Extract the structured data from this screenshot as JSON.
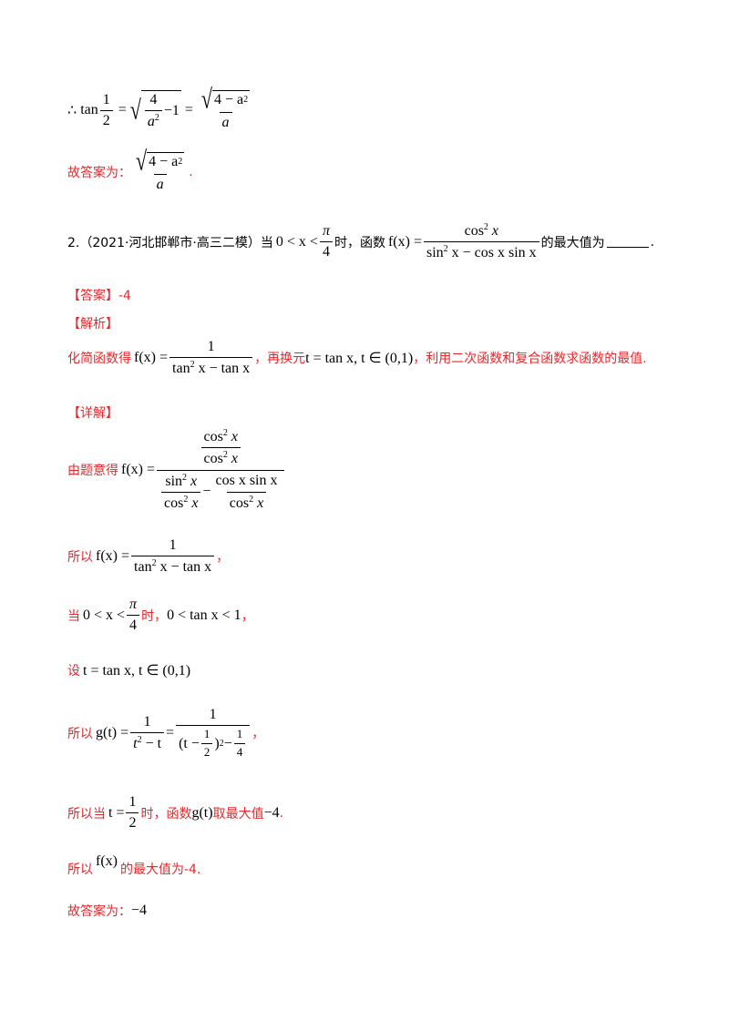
{
  "line1": {
    "therefore": "∴",
    "tan": "tan",
    "half_num": "1",
    "half_den": "2",
    "frac_num": "4",
    "frac_den": "a",
    "minus_one": "−1",
    "eq": "=",
    "rhs_num": "4 − a",
    "rhs_den": "a"
  },
  "answer_line": {
    "label": "故答案为：",
    "num": "4 − a",
    "den": "a",
    "period": "."
  },
  "problem": {
    "number": "2.（2021·河北邯郸市·高三二模）当",
    "cond": "0 < x <",
    "pi": "π",
    "four": "4",
    "shi": "时，函数",
    "fx": "f(x) =",
    "num": "cos",
    "x": "x",
    "den": "sin",
    "den_rest": "x − cos x sin x",
    "tail": "的最大值为",
    "end": "."
  },
  "answer": {
    "label": "【答案】",
    "value": "-4"
  },
  "analysis": {
    "label": "【解析】",
    "pre": "化简函数得",
    "fx": "f(x) =",
    "one": "1",
    "den": "tan",
    "den_rest": "x − tan x",
    "mid": "，再换元",
    "sub": "t = tan x, t ∈ (0,1)",
    "tail": "，利用二次函数和复合函数求函数的最值."
  },
  "detail": {
    "label": "【详解】",
    "s1_pre": "由题意得",
    "s1_fx": "f(x) =",
    "s1_top": "cos",
    "s1_top2": "cos",
    "s1_a_num": "sin",
    "s1_a_den": "cos",
    "s1_minus": "−",
    "s1_b_num": "cos x sin x",
    "s1_b_den": "cos",
    "s2_pre": "所以",
    "s2_fx": "f(x) =",
    "s2_one": "1",
    "s2_den": "tan",
    "s2_den_rest": "x − tan x",
    "s2_end": "，",
    "s3_pre": "当",
    "s3_cond": "0 < x <",
    "s3_pi": "π",
    "s3_four": "4",
    "s3_shi": "时，",
    "s3_ineq": "0 < tan x < 1",
    "s3_end": "，",
    "s4_pre": "设",
    "s4_math": "t = tan x, t ∈ (0,1)",
    "s5_pre": "所以",
    "s5_g": "g(t) =",
    "s5_one": "1",
    "s5_den": "t",
    "s5_den_rest": "− t",
    "s5_eq": "=",
    "s5_one2": "1",
    "s5_den2_a": "(t −",
    "s5_half_n": "1",
    "s5_half_d": "2",
    "s5_den2_b": ")",
    "s5_den2_c": "−",
    "s5_q_n": "1",
    "s5_q_d": "4",
    "s5_end": "，",
    "s6_pre": "所以当",
    "s6_t": "t =",
    "s6_n": "1",
    "s6_d": "2",
    "s6_mid": "时，函数",
    "s6_g": "g(t)",
    "s6_tail": "取最大值",
    "s6_val": "−4",
    "s6_end": ".",
    "s7_pre": "所以",
    "s7_fx": "f(x)",
    "s7_tail": "的最大值为-4.",
    "s8_label": "故答案为：",
    "s8_val": "−4"
  }
}
